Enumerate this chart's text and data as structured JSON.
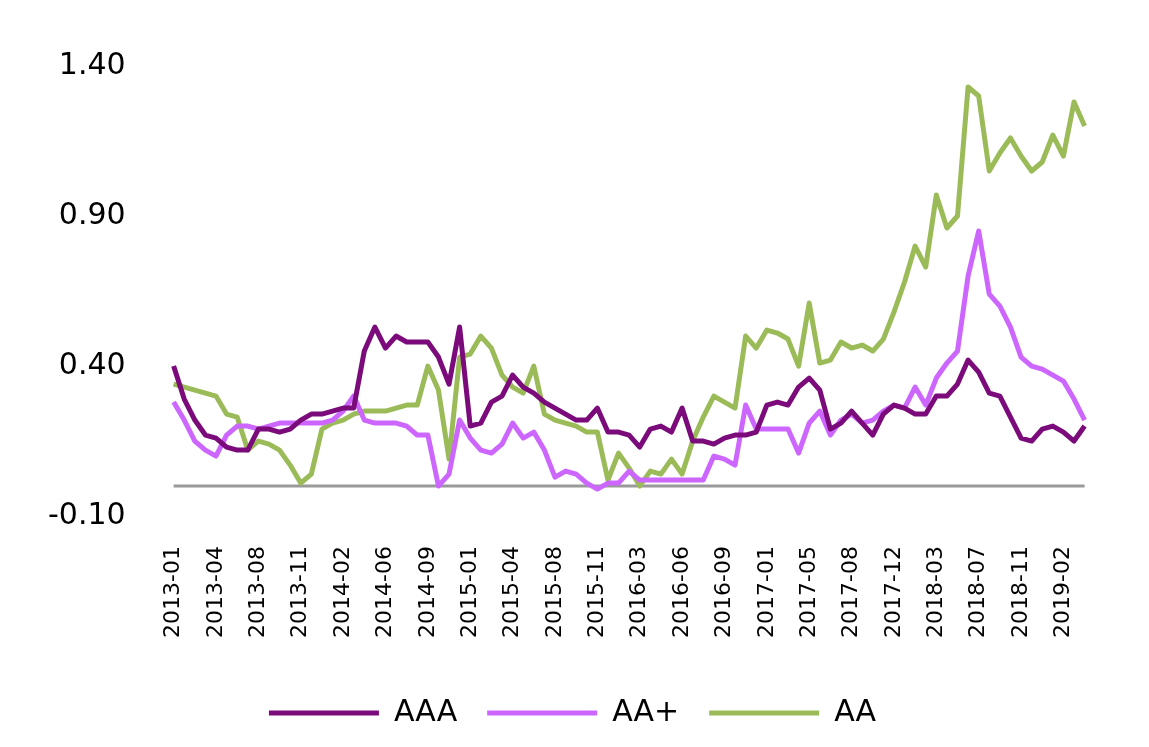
{
  "chart_data": {
    "type": "line",
    "categories": [
      "2013-01",
      null,
      null,
      null,
      "2013-04",
      null,
      null,
      null,
      "2013-08",
      null,
      null,
      null,
      "2013-11",
      null,
      null,
      null,
      "2014-02",
      null,
      null,
      null,
      "2014-06",
      null,
      null,
      null,
      "2014-09",
      null,
      null,
      null,
      "2015-01",
      null,
      null,
      null,
      "2015-04",
      null,
      null,
      null,
      "2015-08",
      null,
      null,
      null,
      "2015-11",
      null,
      null,
      null,
      "2016-03",
      null,
      null,
      null,
      "2016-06",
      null,
      null,
      null,
      "2016-09",
      null,
      null,
      null,
      "2017-01",
      null,
      null,
      null,
      "2017-05",
      null,
      null,
      null,
      "2017-08",
      null,
      null,
      null,
      "2017-12",
      null,
      null,
      null,
      "2018-03",
      null,
      null,
      null,
      "2018-07",
      null,
      null,
      null,
      "2018-11",
      null,
      null,
      null,
      "2019-02",
      null,
      null
    ],
    "series": [
      {
        "name": "AAA",
        "color": "#7b0a7b",
        "values": [
          0.4,
          0.29,
          0.22,
          0.17,
          0.16,
          0.13,
          0.12,
          0.12,
          0.19,
          0.19,
          0.18,
          0.19,
          0.22,
          0.24,
          0.24,
          0.25,
          0.26,
          0.26,
          0.45,
          0.53,
          0.46,
          0.5,
          0.48,
          0.48,
          0.48,
          0.43,
          0.34,
          0.53,
          0.2,
          0.21,
          0.28,
          0.3,
          0.37,
          0.33,
          0.31,
          0.28,
          0.26,
          0.24,
          0.22,
          0.22,
          0.26,
          0.18,
          0.18,
          0.17,
          0.13,
          0.19,
          0.2,
          0.18,
          0.26,
          0.15,
          0.15,
          0.14,
          0.16,
          0.17,
          0.17,
          0.18,
          0.27,
          0.28,
          0.27,
          0.33,
          0.36,
          0.32,
          0.19,
          0.21,
          0.25,
          0.21,
          0.17,
          0.24,
          0.27,
          0.26,
          0.24,
          0.24,
          0.3,
          0.3,
          0.34,
          0.42,
          0.38,
          0.31,
          0.3,
          0.23,
          0.16,
          0.15,
          0.19,
          0.2,
          0.18,
          0.15,
          0.2
        ]
      },
      {
        "name": "AA+",
        "color": "#cc66ff",
        "values": [
          0.28,
          0.22,
          0.15,
          0.12,
          0.1,
          0.17,
          0.2,
          0.2,
          0.19,
          0.2,
          0.21,
          0.21,
          0.21,
          0.21,
          0.21,
          0.22,
          0.25,
          0.3,
          0.22,
          0.21,
          0.21,
          0.21,
          0.2,
          0.17,
          0.17,
          0.0,
          0.04,
          0.22,
          0.16,
          0.12,
          0.11,
          0.14,
          0.21,
          0.16,
          0.18,
          0.12,
          0.03,
          0.05,
          0.04,
          0.01,
          -0.01,
          0.01,
          0.01,
          0.05,
          0.02,
          0.02,
          0.02,
          0.02,
          0.02,
          0.02,
          0.02,
          0.1,
          0.09,
          0.07,
          0.27,
          0.19,
          0.19,
          0.19,
          0.19,
          0.11,
          0.21,
          0.25,
          0.17,
          0.22,
          0.24,
          0.21,
          0.22,
          0.25,
          0.27,
          0.26,
          0.33,
          0.27,
          0.36,
          0.41,
          0.45,
          0.7,
          0.85,
          0.64,
          0.6,
          0.53,
          0.43,
          0.4,
          0.39,
          0.37,
          0.35,
          0.29,
          0.22
        ]
      },
      {
        "name": "AA",
        "color": "#9bbb59",
        "values": [
          0.34,
          0.33,
          0.32,
          0.31,
          0.3,
          0.24,
          0.23,
          0.12,
          0.15,
          0.14,
          0.12,
          0.07,
          0.01,
          0.04,
          0.19,
          0.21,
          0.22,
          0.24,
          0.25,
          0.25,
          0.25,
          0.26,
          0.27,
          0.27,
          0.4,
          0.32,
          0.09,
          0.43,
          0.44,
          0.5,
          0.46,
          0.37,
          0.33,
          0.31,
          0.4,
          0.24,
          0.22,
          0.21,
          0.2,
          0.18,
          0.18,
          0.02,
          0.11,
          0.06,
          0.0,
          0.05,
          0.04,
          0.09,
          0.04,
          0.15,
          0.23,
          0.3,
          0.28,
          0.26,
          0.5,
          0.46,
          0.52,
          0.51,
          0.49,
          0.4,
          0.61,
          0.41,
          0.42,
          0.48,
          0.46,
          0.47,
          0.45,
          0.49,
          0.58,
          0.68,
          0.8,
          0.73,
          0.97,
          0.86,
          0.9,
          1.33,
          1.3,
          1.05,
          1.11,
          1.16,
          1.1,
          1.05,
          1.08,
          1.17,
          1.1,
          1.28,
          1.2
        ]
      }
    ],
    "ylim": [
      -0.1,
      1.4
    ],
    "yticks": [
      {
        "value": -0.1,
        "label": "-0.10"
      },
      {
        "value": 0.4,
        "label": "0.40"
      },
      {
        "value": 0.9,
        "label": "0.90"
      },
      {
        "value": 1.4,
        "label": "1.40"
      }
    ],
    "ref_lines": [
      {
        "axis": "y",
        "value": 0,
        "color": "#999999"
      }
    ],
    "legend": "bottom",
    "marker": "none",
    "line_style": "solid"
  }
}
